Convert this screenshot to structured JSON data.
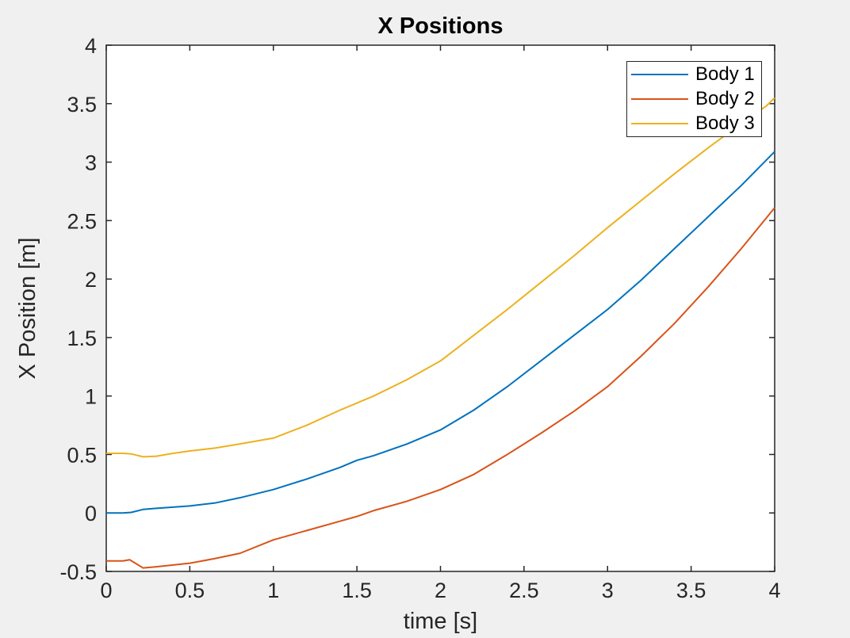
{
  "figure": {
    "background_color": "#f0f0f0",
    "plot_background_color": "#ffffff",
    "axis_color": "#262626",
    "tick_label_color": "#262626",
    "title_color": "#000000"
  },
  "chart_data": {
    "type": "line",
    "title": "X Positions",
    "xlabel": "time [s]",
    "ylabel": "X Position [m]",
    "xlim": [
      0,
      4
    ],
    "ylim": [
      -0.5,
      4
    ],
    "grid": false,
    "legend": {
      "position": "top-right",
      "entries": [
        "Body 1",
        "Body 2",
        "Body 3"
      ]
    },
    "xtick_values": [
      0,
      0.5,
      1,
      1.5,
      2,
      2.5,
      3,
      3.5,
      4
    ],
    "xtick_labels": [
      "0",
      "0.5",
      "1",
      "1.5",
      "2",
      "2.5",
      "3",
      "3.5",
      "4"
    ],
    "ytick_values": [
      -0.5,
      0,
      0.5,
      1,
      1.5,
      2,
      2.5,
      3,
      3.5,
      4
    ],
    "ytick_labels": [
      "-0.5",
      "0",
      "0.5",
      "1",
      "1.5",
      "2",
      "2.5",
      "3",
      "3.5",
      "4"
    ],
    "series": [
      {
        "name": "Body 1",
        "color": "#0072BD",
        "points": [
          [
            0,
            0.0
          ],
          [
            0.1,
            0.0
          ],
          [
            0.15,
            0.005
          ],
          [
            0.22,
            0.03
          ],
          [
            0.3,
            0.04
          ],
          [
            0.4,
            0.05
          ],
          [
            0.5,
            0.06
          ],
          [
            0.65,
            0.085
          ],
          [
            0.8,
            0.13
          ],
          [
            1.0,
            0.2
          ],
          [
            1.2,
            0.29
          ],
          [
            1.4,
            0.39
          ],
          [
            1.5,
            0.45
          ],
          [
            1.6,
            0.49
          ],
          [
            1.8,
            0.59
          ],
          [
            2.0,
            0.71
          ],
          [
            2.2,
            0.88
          ],
          [
            2.4,
            1.08
          ],
          [
            2.6,
            1.3
          ],
          [
            2.8,
            1.52
          ],
          [
            3.0,
            1.74
          ],
          [
            3.2,
            1.99
          ],
          [
            3.4,
            2.26
          ],
          [
            3.6,
            2.53
          ],
          [
            3.8,
            2.8
          ],
          [
            4.0,
            3.09
          ]
        ]
      },
      {
        "name": "Body 2",
        "color": "#D95319",
        "points": [
          [
            0,
            -0.41
          ],
          [
            0.1,
            -0.41
          ],
          [
            0.14,
            -0.4
          ],
          [
            0.22,
            -0.47
          ],
          [
            0.3,
            -0.46
          ],
          [
            0.4,
            -0.445
          ],
          [
            0.5,
            -0.43
          ],
          [
            0.65,
            -0.39
          ],
          [
            0.8,
            -0.345
          ],
          [
            1.0,
            -0.23
          ],
          [
            1.2,
            -0.15
          ],
          [
            1.4,
            -0.07
          ],
          [
            1.5,
            -0.03
          ],
          [
            1.6,
            0.02
          ],
          [
            1.8,
            0.1
          ],
          [
            2.0,
            0.2
          ],
          [
            2.2,
            0.33
          ],
          [
            2.4,
            0.5
          ],
          [
            2.6,
            0.68
          ],
          [
            2.8,
            0.87
          ],
          [
            3.0,
            1.08
          ],
          [
            3.2,
            1.34
          ],
          [
            3.4,
            1.62
          ],
          [
            3.6,
            1.93
          ],
          [
            3.8,
            2.26
          ],
          [
            4.0,
            2.61
          ]
        ]
      },
      {
        "name": "Body 3",
        "color": "#EDB120",
        "points": [
          [
            0,
            0.51
          ],
          [
            0.1,
            0.51
          ],
          [
            0.15,
            0.505
          ],
          [
            0.22,
            0.48
          ],
          [
            0.3,
            0.485
          ],
          [
            0.4,
            0.51
          ],
          [
            0.5,
            0.53
          ],
          [
            0.65,
            0.555
          ],
          [
            0.8,
            0.59
          ],
          [
            1.0,
            0.64
          ],
          [
            1.2,
            0.75
          ],
          [
            1.4,
            0.88
          ],
          [
            1.5,
            0.94
          ],
          [
            1.6,
            1.0
          ],
          [
            1.8,
            1.14
          ],
          [
            2.0,
            1.3
          ],
          [
            2.2,
            1.52
          ],
          [
            2.4,
            1.74
          ],
          [
            2.6,
            1.97
          ],
          [
            2.8,
            2.2
          ],
          [
            3.0,
            2.44
          ],
          [
            3.2,
            2.67
          ],
          [
            3.4,
            2.9
          ],
          [
            3.6,
            3.12
          ],
          [
            3.8,
            3.33
          ],
          [
            3.95,
            3.48
          ],
          [
            4.0,
            3.55
          ]
        ]
      }
    ]
  }
}
